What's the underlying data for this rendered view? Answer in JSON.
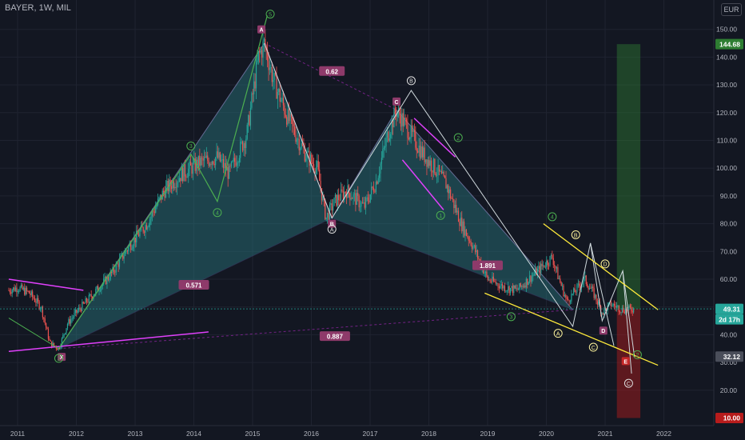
{
  "header": {
    "symbol": "BAYER, 1W, MIL",
    "currency": "EUR"
  },
  "colors": {
    "background": "#131722",
    "grid": "#1f2330",
    "axis_text": "#b2b5be",
    "up_candle": "#26a69a",
    "down_candle": "#ef5350",
    "harmonic_fill": "#2a7a80",
    "harmonic_line": "#cfd8dc",
    "elliott_green": "#4caf50",
    "trendline_magenta": "#e040fb",
    "channel_yellow": "#ffeb3b",
    "target_green": "#2e7d32",
    "stop_red": "#b71c1c",
    "label_purple": "#8e3a6a",
    "last_price": "#26a69a"
  },
  "price_axis": {
    "ticks": [
      "150.00",
      "140.00",
      "130.00",
      "120.00",
      "110.00",
      "100.00",
      "90.00",
      "80.00",
      "70.00",
      "60.00",
      "50.00",
      "40.00",
      "30.00",
      "20.00"
    ],
    "tick_values": [
      150,
      140,
      130,
      120,
      110,
      100,
      90,
      80,
      70,
      60,
      50,
      40,
      30,
      20
    ],
    "badges": [
      {
        "text": "144.68",
        "value": 144.68,
        "color": "#2e7d32"
      },
      {
        "text": "49.31",
        "value": 49.31,
        "color": "#26a69a"
      },
      {
        "text": "2d 17h",
        "value": 45.8,
        "color": "#26a69a"
      },
      {
        "text": "32.12",
        "value": 32.12,
        "color": "#4a4e5a"
      },
      {
        "text": "10.00",
        "value": 10.0,
        "color": "#b71c1c"
      }
    ]
  },
  "time_axis": {
    "ticks": [
      "2011",
      "2012",
      "2013",
      "2014",
      "2015",
      "2016",
      "2017",
      "2018",
      "2019",
      "2020",
      "2021",
      "2022"
    ],
    "tick_values": [
      2011,
      2012,
      2013,
      2014,
      2015,
      2016,
      2017,
      2018,
      2019,
      2020,
      2021,
      2022
    ]
  },
  "harmonic_labels": {
    "ratio_0_62": "0.62",
    "ratio_0_571": "0.571",
    "ratio_1_891": "1.891",
    "ratio_0_887": "0.887",
    "X": "X",
    "A": "A",
    "B": "B",
    "C": "C",
    "D": "D",
    "E": "E"
  },
  "elliott_labels": {
    "wave5_top": "5",
    "wave3_left": "3",
    "wave4_left": "4",
    "wave2_left": "2",
    "waveA_mid": "A",
    "waveB_top": "B",
    "wave2_right": "2",
    "wave1_mid": "1",
    "wave3_low": "3",
    "wave4_right": "4",
    "waveB_right": "B",
    "waveA_right": "A",
    "waveC_right": "C",
    "waveD_right": "D",
    "waveC_target": "C",
    "wave2_end": "2"
  },
  "chart_data": {
    "type": "candlestick",
    "title": "BAYER, 1W, MIL",
    "ylim": [
      5,
      155
    ],
    "xlim": [
      2010.85,
      2022.45
    ],
    "price_path": {
      "x": [
        2010.85,
        2011.0,
        2011.2,
        2011.4,
        2011.55,
        2011.7,
        2011.85,
        2012.0,
        2012.3,
        2012.6,
        2012.9,
        2013.2,
        2013.5,
        2013.8,
        2014.1,
        2014.4,
        2014.6,
        2014.9,
        2015.1,
        2015.2,
        2015.35,
        2015.6,
        2015.9,
        2016.1,
        2016.25,
        2016.4,
        2016.6,
        2016.9,
        2017.1,
        2017.3,
        2017.45,
        2017.7,
        2017.9,
        2018.1,
        2018.3,
        2018.55,
        2018.75,
        2019.0,
        2019.3,
        2019.5,
        2019.8,
        2020.0,
        2020.1,
        2020.2,
        2020.35,
        2020.5,
        2020.65,
        2020.8,
        2020.95,
        2021.1,
        2021.3,
        2021.5
      ],
      "y": [
        56,
        57,
        55,
        50,
        37,
        35,
        44,
        48,
        55,
        62,
        72,
        80,
        92,
        98,
        102,
        104,
        98,
        112,
        140,
        145,
        132,
        118,
        105,
        100,
        82,
        88,
        92,
        86,
        95,
        112,
        121,
        112,
        105,
        100,
        94,
        80,
        72,
        60,
        57,
        56,
        62,
        66,
        68,
        61,
        52,
        56,
        60,
        55,
        48,
        51,
        49,
        49.3
      ]
    },
    "last_price": 49.31,
    "target_zone": [
      49.31,
      144.68
    ],
    "stop_zone": [
      10.0,
      49.31
    ],
    "harmonic_points": {
      "X": [
        2011.7,
        35
      ],
      "A": [
        2015.2,
        145
      ],
      "B": [
        2016.35,
        82
      ],
      "C": [
        2017.45,
        121
      ],
      "D": [
        2020.45,
        49
      ],
      "E": [
        2021.35,
        32.12
      ]
    },
    "harmonic_ratios": [
      "0.62",
      "0.571",
      "1.891",
      "0.887"
    ]
  }
}
